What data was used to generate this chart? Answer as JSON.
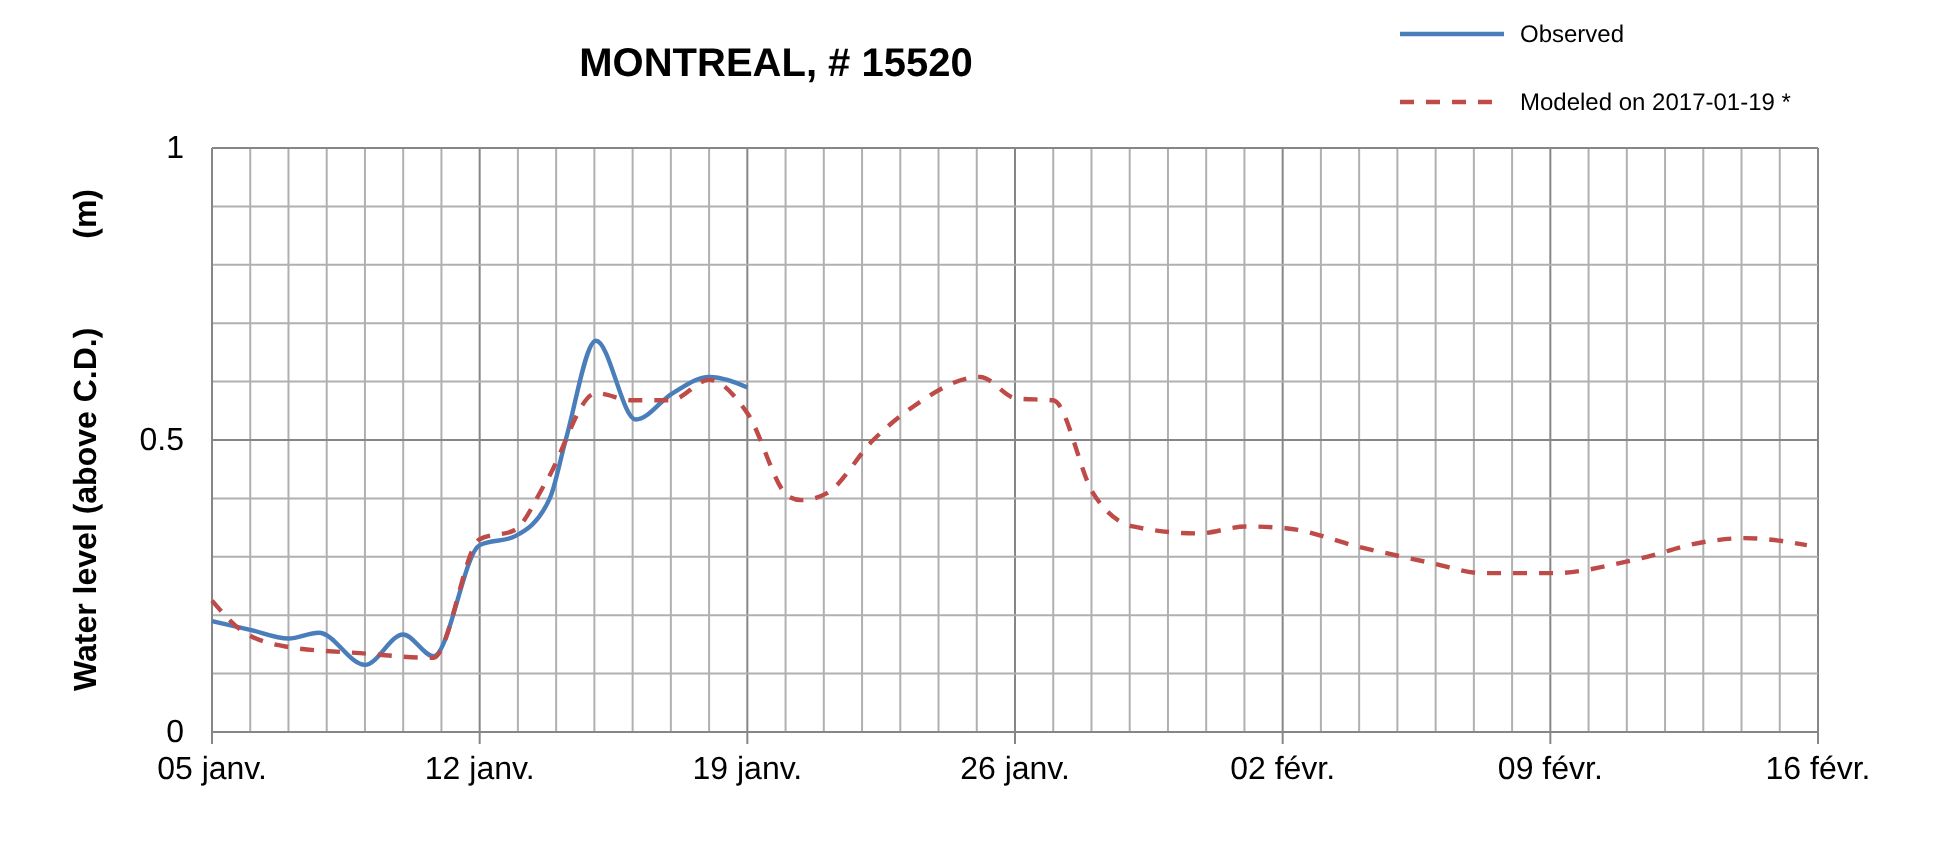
{
  "chart_data": {
    "type": "line",
    "title": "MONTREAL, # 15520",
    "ylabel": "Water level (above C.D.)          (m)",
    "xlim": [
      "2017-01-05",
      "2017-02-16"
    ],
    "xticks": [
      {
        "value": "2017-01-05",
        "label": "05 janv."
      },
      {
        "value": "2017-01-06",
        "label": null
      },
      {
        "value": "2017-01-07",
        "label": null
      },
      {
        "value": "2017-01-08",
        "label": null
      },
      {
        "value": "2017-01-09",
        "label": null
      },
      {
        "value": "2017-01-10",
        "label": null
      },
      {
        "value": "2017-01-11",
        "label": null
      },
      {
        "value": "2017-01-12",
        "label": "12 janv."
      },
      {
        "value": "2017-01-13",
        "label": null
      },
      {
        "value": "2017-01-14",
        "label": null
      },
      {
        "value": "2017-01-15",
        "label": null
      },
      {
        "value": "2017-01-16",
        "label": null
      },
      {
        "value": "2017-01-17",
        "label": null
      },
      {
        "value": "2017-01-18",
        "label": null
      },
      {
        "value": "2017-01-19",
        "label": "19 janv."
      },
      {
        "value": "2017-01-20",
        "label": null
      },
      {
        "value": "2017-01-21",
        "label": null
      },
      {
        "value": "2017-01-22",
        "label": null
      },
      {
        "value": "2017-01-23",
        "label": null
      },
      {
        "value": "2017-01-24",
        "label": null
      },
      {
        "value": "2017-01-25",
        "label": null
      },
      {
        "value": "2017-01-26",
        "label": "26 janv."
      },
      {
        "value": "2017-01-27",
        "label": null
      },
      {
        "value": "2017-01-28",
        "label": null
      },
      {
        "value": "2017-01-29",
        "label": null
      },
      {
        "value": "2017-01-30",
        "label": null
      },
      {
        "value": "2017-01-31",
        "label": null
      },
      {
        "value": "2017-02-01",
        "label": null
      },
      {
        "value": "2017-02-02",
        "label": "02 févr."
      },
      {
        "value": "2017-02-03",
        "label": null
      },
      {
        "value": "2017-02-04",
        "label": null
      },
      {
        "value": "2017-02-05",
        "label": null
      },
      {
        "value": "2017-02-06",
        "label": null
      },
      {
        "value": "2017-02-07",
        "label": null
      },
      {
        "value": "2017-02-08",
        "label": null
      },
      {
        "value": "2017-02-09",
        "label": "09 févr."
      },
      {
        "value": "2017-02-10",
        "label": null
      },
      {
        "value": "2017-02-11",
        "label": null
      },
      {
        "value": "2017-02-12",
        "label": null
      },
      {
        "value": "2017-02-13",
        "label": null
      },
      {
        "value": "2017-02-14",
        "label": null
      },
      {
        "value": "2017-02-15",
        "label": null
      },
      {
        "value": "2017-02-16",
        "label": "16 févr."
      }
    ],
    "ylim": [
      0,
      1
    ],
    "yticks": [
      0,
      {
        "value": 0.1,
        "label": null
      },
      {
        "value": 0.2,
        "label": null
      },
      {
        "value": 0.3,
        "label": null
      },
      {
        "value": 0.4,
        "label": null
      },
      0.5,
      {
        "value": 0.6,
        "label": null
      },
      {
        "value": 0.7,
        "label": null
      },
      {
        "value": 0.8,
        "label": null
      },
      {
        "value": 0.9,
        "label": null
      },
      1
    ],
    "grid": true,
    "legend": "top right",
    "series": [
      {
        "name": "Observed",
        "color": "#4a7ebb",
        "line_style": "solid",
        "x": [
          "2017-01-05",
          "2017-01-06",
          "2017-01-07",
          "2017-01-07T19:00",
          "2017-01-09",
          "2017-01-10",
          "2017-01-10T19:00",
          "2017-01-12",
          "2017-01-12T22:00",
          "2017-01-13T20:00",
          "2017-01-14T06:00",
          "2017-01-15T01:00",
          "2017-01-16T02:00",
          "2017-01-17T01:00",
          "2017-01-18",
          "2017-01-19"
        ],
        "values": [
          0.19,
          0.175,
          0.16,
          0.17,
          0.115,
          0.167,
          0.13,
          0.32,
          0.335,
          0.4,
          0.5,
          0.67,
          0.535,
          0.58,
          0.608,
          0.59
        ]
      },
      {
        "name": "Modeled on 2017-01-19 *",
        "color": "#be4b48",
        "line_style": "dashed",
        "x": [
          "2017-01-05",
          "2017-01-05T18:00",
          "2017-01-06T23:00",
          "2017-01-08T21:00",
          "2017-01-10T19:00",
          "2017-01-12",
          "2017-01-12T22:00",
          "2017-01-13T18:00",
          "2017-01-15T01:00",
          "2017-01-16",
          "2017-01-17",
          "2017-01-18",
          "2017-01-19",
          "2017-01-20T02:00",
          "2017-01-20T10:00",
          "2017-01-21T02:00",
          "2017-01-22T07:00",
          "2017-01-23T08:00",
          "2017-01-25T02:00",
          "2017-01-26T01:00",
          "2017-01-27",
          "2017-01-28T01:00",
          "2017-01-29T02:00",
          "2017-01-30T19:00",
          "2017-02-01T01:00",
          "2017-02-02T02:00",
          "2017-02-04",
          "2017-02-05T22:00",
          "2017-02-07T05:00",
          "2017-02-09T02:00",
          "2017-02-11T05:00",
          "2017-02-13T02:00",
          "2017-02-14T02:00",
          "2017-02-15T17:00"
        ],
        "values": [
          0.225,
          0.175,
          0.146,
          0.135,
          0.127,
          0.33,
          0.346,
          0.43,
          0.58,
          0.568,
          0.568,
          0.603,
          0.546,
          0.403,
          0.397,
          0.409,
          0.5,
          0.557,
          0.608,
          0.571,
          0.568,
          0.409,
          0.352,
          0.34,
          0.352,
          0.349,
          0.317,
          0.289,
          0.272,
          0.272,
          0.295,
          0.326,
          0.332,
          0.32
        ]
      }
    ]
  }
}
